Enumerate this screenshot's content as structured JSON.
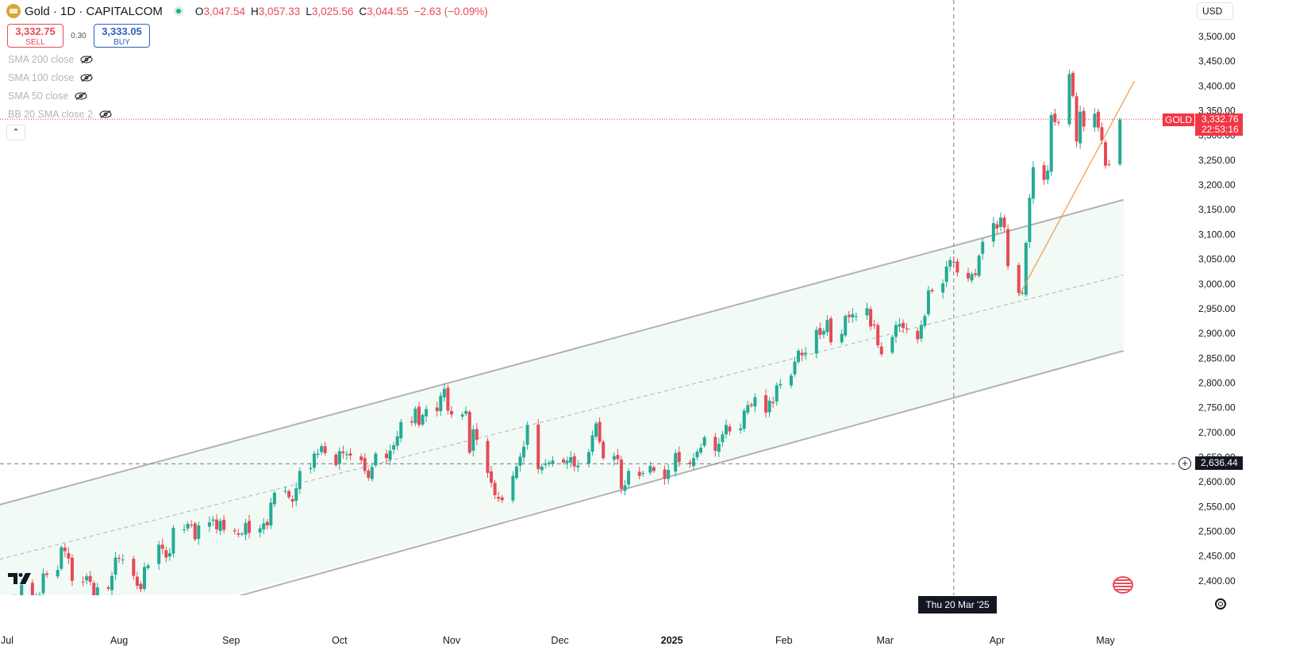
{
  "header": {
    "symbol": "Gold · 1D · CAPITALCOM",
    "ohlc": {
      "o_label": "O",
      "o": "3,047.54",
      "h_label": "H",
      "h": "3,057.33",
      "l_label": "L",
      "l": "3,025.56",
      "c_label": "C",
      "c": "3,044.55",
      "change": "−2.63 (−0.09%)"
    }
  },
  "trade": {
    "sell_price": "3,332.75",
    "sell_label": "SELL",
    "spread": "0.30",
    "buy_price": "3,333.05",
    "buy_label": "BUY"
  },
  "indicators": [
    "SMA 200 close",
    "SMA 100 close",
    "SMA 50 close",
    "BB 20 SMA close 2"
  ],
  "currency": "USD",
  "price_axis": {
    "labels": [
      "3,500.00",
      "3,450.00",
      "3,400.00",
      "3,350.00",
      "3,300.00",
      "3,250.00",
      "3,200.00",
      "3,150.00",
      "3,100.00",
      "3,050.00",
      "3,000.00",
      "2,950.00",
      "2,900.00",
      "2,850.00",
      "2,800.00",
      "2,750.00",
      "2,700.00",
      "2,650.00",
      "2,600.00",
      "2,550.00",
      "2,500.00",
      "2,450.00",
      "2,400.00"
    ]
  },
  "time_axis": {
    "labels": [
      "Jul",
      "Aug",
      "Sep",
      "Oct",
      "Nov",
      "Dec",
      "2025",
      "Feb",
      "Mar",
      "Apr",
      "May"
    ]
  },
  "current": {
    "symbol_label": "GOLD",
    "price": "3,332.76",
    "countdown": "22:53:16"
  },
  "crosshair": {
    "price": "2,636.44",
    "date": "Thu 20 Mar '25"
  },
  "colors": {
    "up": "#22ab94",
    "down": "#e74a57",
    "channel_fill": "#f2faf6",
    "channel_line": "#b2b2b2",
    "trendline": "#f0a24a"
  },
  "chart_data": {
    "type": "candlestick",
    "title": "Gold · 1D · CAPITALCOM",
    "ylim": [
      2365,
      3560
    ],
    "y_ticks": [
      2400,
      2450,
      2500,
      2550,
      2600,
      2650,
      2700,
      2750,
      2800,
      2850,
      2900,
      2950,
      3000,
      3050,
      3100,
      3150,
      3200,
      3250,
      3300,
      3350,
      3400,
      3450,
      3500
    ],
    "x_ticks": [
      {
        "label": "Jul",
        "date": "2024-07-01"
      },
      {
        "label": "Aug",
        "date": "2024-08-01"
      },
      {
        "label": "Sep",
        "date": "2024-09-01"
      },
      {
        "label": "Oct",
        "date": "2024-10-01"
      },
      {
        "label": "Nov",
        "date": "2024-11-01"
      },
      {
        "label": "Dec",
        "date": "2024-12-01"
      },
      {
        "label": "2025",
        "date": "2025-01-01"
      },
      {
        "label": "Feb",
        "date": "2025-02-01"
      },
      {
        "label": "Mar",
        "date": "2025-03-01"
      },
      {
        "label": "Apr",
        "date": "2025-04-01"
      },
      {
        "label": "May",
        "date": "2025-05-01"
      }
    ],
    "channel": {
      "upper": [
        [
          "2024-06-27",
          2550
        ],
        [
          "2025-05-06",
          3170
        ]
      ],
      "lower": [
        [
          "2024-09-01",
          2365
        ],
        [
          "2025-05-06",
          2865
        ]
      ],
      "middle": [
        [
          "2024-06-27",
          2440
        ],
        [
          "2025-05-06",
          3018
        ]
      ]
    },
    "trendline": [
      [
        "2025-04-07",
        2975
      ],
      [
        "2025-05-09",
        3410
      ]
    ],
    "closes": [
      [
        "2024-07-02",
        2330
      ],
      [
        "2024-07-03",
        2365
      ],
      [
        "2024-07-05",
        2392
      ],
      [
        "2024-07-08",
        2360
      ],
      [
        "2024-07-09",
        2364
      ],
      [
        "2024-07-10",
        2372
      ],
      [
        "2024-07-11",
        2415
      ],
      [
        "2024-07-12",
        2412
      ],
      [
        "2024-07-15",
        2422
      ],
      [
        "2024-07-16",
        2468
      ],
      [
        "2024-07-17",
        2460
      ],
      [
        "2024-07-18",
        2445
      ],
      [
        "2024-07-19",
        2400
      ],
      [
        "2024-07-22",
        2397
      ],
      [
        "2024-07-23",
        2409
      ],
      [
        "2024-07-24",
        2398
      ],
      [
        "2024-07-25",
        2365
      ],
      [
        "2024-07-26",
        2387
      ],
      [
        "2024-07-29",
        2384
      ],
      [
        "2024-07-30",
        2410
      ],
      [
        "2024-07-31",
        2447
      ],
      [
        "2024-08-01",
        2446
      ],
      [
        "2024-08-02",
        2443
      ],
      [
        "2024-08-05",
        2410
      ],
      [
        "2024-08-06",
        2390
      ],
      [
        "2024-08-07",
        2383
      ],
      [
        "2024-08-08",
        2428
      ],
      [
        "2024-08-09",
        2431
      ],
      [
        "2024-08-12",
        2473
      ],
      [
        "2024-08-13",
        2465
      ],
      [
        "2024-08-14",
        2447
      ],
      [
        "2024-08-15",
        2456
      ],
      [
        "2024-08-16",
        2507
      ],
      [
        "2024-08-19",
        2504
      ],
      [
        "2024-08-20",
        2515
      ],
      [
        "2024-08-21",
        2512
      ],
      [
        "2024-08-22",
        2484
      ],
      [
        "2024-08-23",
        2512
      ],
      [
        "2024-08-26",
        2518
      ],
      [
        "2024-08-27",
        2524
      ],
      [
        "2024-08-28",
        2504
      ],
      [
        "2024-08-29",
        2521
      ],
      [
        "2024-08-30",
        2503
      ],
      [
        "2024-09-02",
        2500
      ],
      [
        "2024-09-03",
        2493
      ],
      [
        "2024-09-04",
        2495
      ],
      [
        "2024-09-05",
        2517
      ],
      [
        "2024-09-06",
        2497
      ],
      [
        "2024-09-09",
        2506
      ],
      [
        "2024-09-10",
        2516
      ],
      [
        "2024-09-11",
        2512
      ],
      [
        "2024-09-12",
        2558
      ],
      [
        "2024-09-13",
        2578
      ],
      [
        "2024-09-16",
        2582
      ],
      [
        "2024-09-17",
        2569
      ],
      [
        "2024-09-18",
        2560
      ],
      [
        "2024-09-19",
        2587
      ],
      [
        "2024-09-20",
        2622
      ],
      [
        "2024-09-23",
        2628
      ],
      [
        "2024-09-24",
        2657
      ],
      [
        "2024-09-25",
        2657
      ],
      [
        "2024-09-26",
        2672
      ],
      [
        "2024-09-27",
        2658
      ],
      [
        "2024-09-30",
        2634
      ],
      [
        "2024-10-01",
        2662
      ],
      [
        "2024-10-02",
        2658
      ],
      [
        "2024-10-03",
        2656
      ],
      [
        "2024-10-04",
        2653
      ],
      [
        "2024-10-07",
        2644
      ],
      [
        "2024-10-08",
        2622
      ],
      [
        "2024-10-09",
        2608
      ],
      [
        "2024-10-10",
        2630
      ],
      [
        "2024-10-11",
        2657
      ],
      [
        "2024-10-14",
        2648
      ],
      [
        "2024-10-15",
        2663
      ],
      [
        "2024-10-16",
        2674
      ],
      [
        "2024-10-17",
        2692
      ],
      [
        "2024-10-18",
        2721
      ],
      [
        "2024-10-21",
        2720
      ],
      [
        "2024-10-22",
        2748
      ],
      [
        "2024-10-23",
        2715
      ],
      [
        "2024-10-24",
        2735
      ],
      [
        "2024-10-25",
        2747
      ],
      [
        "2024-10-28",
        2743
      ],
      [
        "2024-10-29",
        2774
      ],
      [
        "2024-10-30",
        2788
      ],
      [
        "2024-10-31",
        2744
      ],
      [
        "2024-11-01",
        2736
      ],
      [
        "2024-11-04",
        2736
      ],
      [
        "2024-11-05",
        2743
      ],
      [
        "2024-11-06",
        2659
      ],
      [
        "2024-11-07",
        2706
      ],
      [
        "2024-11-08",
        2685
      ],
      [
        "2024-11-11",
        2618
      ],
      [
        "2024-11-12",
        2598
      ],
      [
        "2024-11-13",
        2573
      ],
      [
        "2024-11-14",
        2566
      ],
      [
        "2024-11-15",
        2563
      ],
      [
        "2024-11-18",
        2612
      ],
      [
        "2024-11-19",
        2631
      ],
      [
        "2024-11-20",
        2651
      ],
      [
        "2024-11-21",
        2671
      ],
      [
        "2024-11-22",
        2715
      ],
      [
        "2024-11-25",
        2626
      ],
      [
        "2024-11-26",
        2631
      ],
      [
        "2024-11-27",
        2636
      ],
      [
        "2024-11-28",
        2639
      ],
      [
        "2024-11-29",
        2643
      ],
      [
        "2024-12-02",
        2639
      ],
      [
        "2024-12-03",
        2643
      ],
      [
        "2024-12-04",
        2650
      ],
      [
        "2024-12-05",
        2631
      ],
      [
        "2024-12-06",
        2633
      ],
      [
        "2024-12-09",
        2660
      ],
      [
        "2024-12-10",
        2694
      ],
      [
        "2024-12-11",
        2718
      ],
      [
        "2024-12-12",
        2681
      ],
      [
        "2024-12-13",
        2648
      ],
      [
        "2024-12-16",
        2652
      ],
      [
        "2024-12-17",
        2646
      ],
      [
        "2024-12-18",
        2586
      ],
      [
        "2024-12-19",
        2593
      ],
      [
        "2024-12-20",
        2622
      ],
      [
        "2024-12-23",
        2612
      ],
      [
        "2024-12-24",
        2618
      ],
      [
        "2024-12-26",
        2632
      ],
      [
        "2024-12-27",
        2622
      ],
      [
        "2024-12-30",
        2606
      ],
      [
        "2024-12-31",
        2624
      ],
      [
        "2025-01-02",
        2658
      ],
      [
        "2025-01-03",
        2640
      ],
      [
        "2025-01-06",
        2636
      ],
      [
        "2025-01-07",
        2648
      ],
      [
        "2025-01-08",
        2661
      ],
      [
        "2025-01-09",
        2669
      ],
      [
        "2025-01-10",
        2690
      ],
      [
        "2025-01-13",
        2663
      ],
      [
        "2025-01-14",
        2677
      ],
      [
        "2025-01-15",
        2696
      ],
      [
        "2025-01-16",
        2715
      ],
      [
        "2025-01-17",
        2702
      ],
      [
        "2025-01-20",
        2708
      ],
      [
        "2025-01-21",
        2744
      ],
      [
        "2025-01-22",
        2755
      ],
      [
        "2025-01-23",
        2754
      ],
      [
        "2025-01-24",
        2771
      ],
      [
        "2025-01-27",
        2740
      ],
      [
        "2025-01-28",
        2764
      ],
      [
        "2025-01-29",
        2759
      ],
      [
        "2025-01-30",
        2795
      ],
      [
        "2025-01-31",
        2798
      ],
      [
        "2025-02-03",
        2815
      ],
      [
        "2025-02-04",
        2843
      ],
      [
        "2025-02-05",
        2865
      ],
      [
        "2025-02-06",
        2856
      ],
      [
        "2025-02-07",
        2861
      ],
      [
        "2025-02-10",
        2907
      ],
      [
        "2025-02-11",
        2897
      ],
      [
        "2025-02-12",
        2905
      ],
      [
        "2025-02-13",
        2927
      ],
      [
        "2025-02-14",
        2882
      ],
      [
        "2025-02-17",
        2899
      ],
      [
        "2025-02-18",
        2935
      ],
      [
        "2025-02-19",
        2933
      ],
      [
        "2025-02-20",
        2939
      ],
      [
        "2025-02-21",
        2935
      ],
      [
        "2025-02-24",
        2951
      ],
      [
        "2025-02-25",
        2914
      ],
      [
        "2025-02-26",
        2916
      ],
      [
        "2025-02-27",
        2876
      ],
      [
        "2025-02-28",
        2858
      ],
      [
        "2025-03-03",
        2893
      ],
      [
        "2025-03-04",
        2917
      ],
      [
        "2025-03-05",
        2919
      ],
      [
        "2025-03-06",
        2911
      ],
      [
        "2025-03-07",
        2909
      ],
      [
        "2025-03-10",
        2888
      ],
      [
        "2025-03-11",
        2917
      ],
      [
        "2025-03-12",
        2935
      ],
      [
        "2025-03-13",
        2987
      ],
      [
        "2025-03-14",
        2985
      ],
      [
        "2025-03-17",
        3001
      ],
      [
        "2025-03-18",
        3035
      ],
      [
        "2025-03-19",
        3048
      ],
      [
        "2025-03-20",
        3043
      ],
      [
        "2025-03-21",
        3023
      ],
      [
        "2025-03-24",
        3011
      ],
      [
        "2025-03-25",
        3020
      ],
      [
        "2025-03-26",
        3018
      ],
      [
        "2025-03-27",
        3057
      ],
      [
        "2025-03-28",
        3085
      ],
      [
        "2025-03-31",
        3123
      ],
      [
        "2025-04-01",
        3112
      ],
      [
        "2025-04-02",
        3134
      ],
      [
        "2025-04-03",
        3114
      ],
      [
        "2025-04-04",
        3036
      ],
      [
        "2025-04-07",
        2982
      ],
      [
        "2025-04-08",
        2982
      ],
      [
        "2025-04-09",
        3083
      ],
      [
        "2025-04-10",
        3174
      ],
      [
        "2025-04-11",
        3236
      ],
      [
        "2025-04-14",
        3210
      ],
      [
        "2025-04-15",
        3229
      ],
      [
        "2025-04-16",
        3341
      ],
      [
        "2025-04-17",
        3327
      ],
      [
        "2025-04-18",
        3326
      ],
      [
        "2025-04-21",
        3424
      ],
      [
        "2025-04-22",
        3380
      ],
      [
        "2025-04-23",
        3288
      ],
      [
        "2025-04-24",
        3348
      ],
      [
        "2025-04-25",
        3318
      ],
      [
        "2025-04-28",
        3344
      ],
      [
        "2025-04-29",
        3316
      ],
      [
        "2025-04-30",
        3289
      ],
      [
        "2025-05-01",
        3239
      ],
      [
        "2025-05-02",
        3242
      ],
      [
        "2025-05-05",
        3332
      ]
    ]
  }
}
